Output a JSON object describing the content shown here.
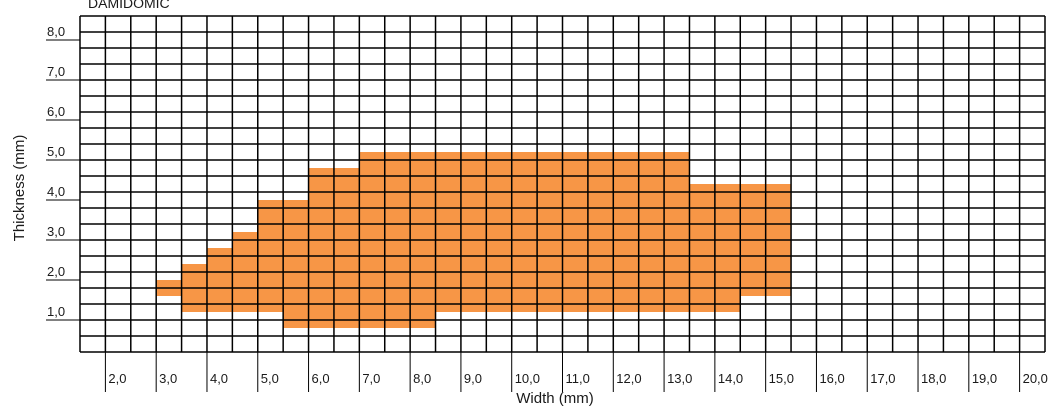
{
  "brand_text": "DAMIDOMIC",
  "chart_data": {
    "type": "heatmap",
    "title": "",
    "xlabel": "Width (mm)",
    "ylabel": "Thickness (mm)",
    "x_ticks": [
      "2,0",
      "3,0",
      "4,0",
      "5,0",
      "6,0",
      "7,0",
      "8,0",
      "9,0",
      "10,0",
      "11,0",
      "12,0",
      "13,0",
      "14,0",
      "15,0",
      "16,0",
      "17,0",
      "18,0",
      "19,0",
      "20,0"
    ],
    "y_ticks": [
      "1,0",
      "2,0",
      "3,0",
      "4,0",
      "5,0",
      "6,0",
      "7,0",
      "8,0"
    ],
    "xlim": [
      1.5,
      20.5
    ],
    "ylim": [
      0.2,
      8.6
    ],
    "cell_width": 0.5,
    "cell_height": 0.4,
    "fill_color": "#f79646",
    "grid_color": "#000000",
    "grid": true,
    "filled_ranges": [
      {
        "thickness": 0.8,
        "width_from": 5.5,
        "width_to": 8.5
      },
      {
        "thickness": 1.2,
        "width_from": 3.5,
        "width_to": 14.5
      },
      {
        "thickness": 1.6,
        "width_from": 3.0,
        "width_to": 15.5
      },
      {
        "thickness": 2.0,
        "width_from": 3.5,
        "width_to": 15.5
      },
      {
        "thickness": 2.4,
        "width_from": 4.0,
        "width_to": 15.5
      },
      {
        "thickness": 2.8,
        "width_from": 4.5,
        "width_to": 15.5
      },
      {
        "thickness": 3.2,
        "width_from": 5.0,
        "width_to": 15.5
      },
      {
        "thickness": 3.6,
        "width_from": 5.0,
        "width_to": 15.5
      },
      {
        "thickness": 4.0,
        "width_from": 6.0,
        "width_to": 15.5
      },
      {
        "thickness": 4.4,
        "width_from": 6.0,
        "width_to": 13.5
      },
      {
        "thickness": 4.8,
        "width_from": 7.0,
        "width_to": 13.5
      }
    ]
  }
}
